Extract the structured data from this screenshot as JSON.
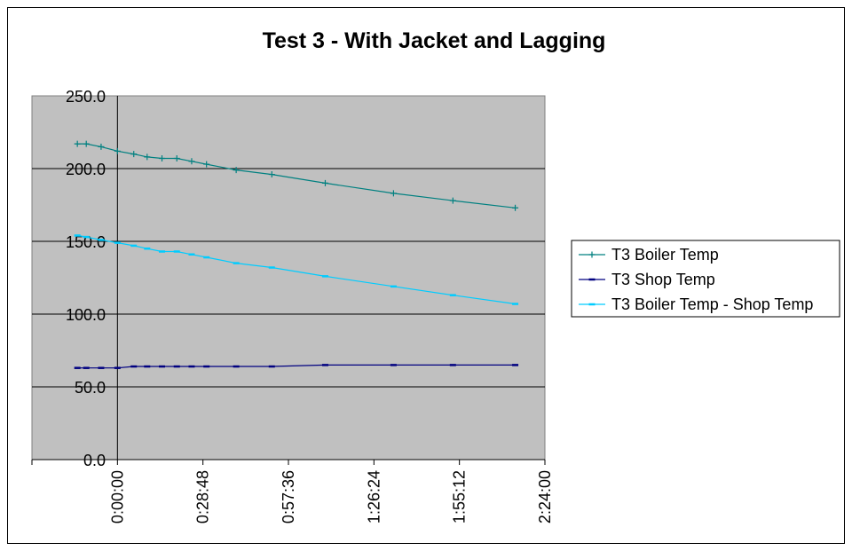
{
  "chart_data": {
    "type": "line",
    "title": "Test 3 - With Jacket and Lagging",
    "xlabel": "",
    "ylabel": "",
    "x_unit": "elapsed time (h:mm:ss)",
    "xlim": [
      "-0:28:48",
      "2:24:00"
    ],
    "ylim": [
      0,
      250
    ],
    "yticks": [
      "0.0",
      "50.0",
      "100.0",
      "150.0",
      "200.0",
      "250.0"
    ],
    "xticks": [
      "0:00:00",
      "0:28:48",
      "0:57:36",
      "1:26:24",
      "1:55:12",
      "2:24:00"
    ],
    "grid": "horizontal major",
    "plot_background": "#c0c0c0",
    "legend_position": "right",
    "x": [
      "-0:13:30",
      "-0:10:30",
      "-0:05:30",
      "0:00:00",
      "0:05:30",
      "0:10:00",
      "0:15:00",
      "0:20:00",
      "0:25:00",
      "0:30:00",
      "0:40:00",
      "0:52:00",
      "1:10:00",
      "1:33:00",
      "1:53:00",
      "2:14:00"
    ],
    "series": [
      {
        "name": "T3 Boiler Temp",
        "color": "#008080",
        "marker": "plus",
        "values": [
          217,
          217,
          215,
          212,
          210,
          208,
          207,
          207,
          205,
          203,
          199,
          196,
          190,
          183,
          178,
          173
        ]
      },
      {
        "name": "T3 Shop Temp",
        "color": "#000080",
        "marker": "dash",
        "values": [
          63,
          63,
          63,
          63,
          64,
          64,
          64,
          64,
          64,
          64,
          64,
          64,
          65,
          65,
          65,
          65
        ]
      },
      {
        "name": "T3 Boiler Temp - Shop Temp",
        "color": "#00ccff",
        "marker": "dash",
        "values": [
          154,
          153,
          151,
          149,
          147,
          145,
          143,
          143,
          141,
          139,
          135,
          132,
          126,
          119,
          113,
          107
        ]
      }
    ]
  }
}
